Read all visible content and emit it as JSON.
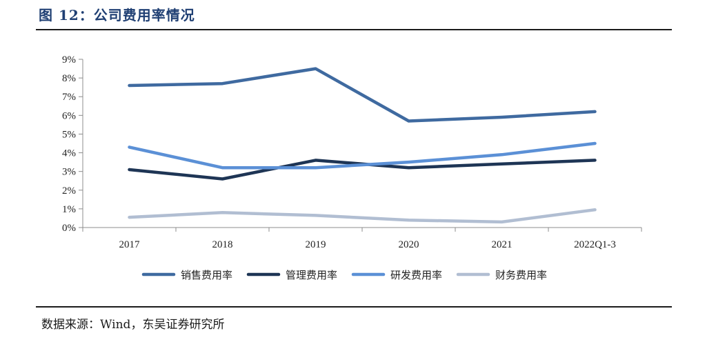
{
  "header": {
    "figure_title": "图 12：公司费用率情况"
  },
  "footer": {
    "source": "数据来源：Wind，东吴证券研究所"
  },
  "chart_data": {
    "type": "line",
    "categories": [
      "2017",
      "2018",
      "2019",
      "2020",
      "2021",
      "2022Q1-3"
    ],
    "ylim": [
      0,
      9
    ],
    "yticks": [
      0,
      1,
      2,
      3,
      4,
      5,
      6,
      7,
      8,
      9
    ],
    "ytick_labels": [
      "0%",
      "1%",
      "2%",
      "3%",
      "4%",
      "5%",
      "6%",
      "7%",
      "8%",
      "9%"
    ],
    "grid": false,
    "legend_position": "bottom",
    "series": [
      {
        "name": "销售费用率",
        "color": "#3f6aa0",
        "values": [
          7.6,
          7.7,
          8.5,
          5.7,
          5.9,
          6.2
        ]
      },
      {
        "name": "管理费用率",
        "color": "#1e3555",
        "values": [
          3.1,
          2.6,
          3.6,
          3.2,
          3.4,
          3.6
        ]
      },
      {
        "name": "研发费用率",
        "color": "#5b90d6",
        "values": [
          4.3,
          3.2,
          3.2,
          3.5,
          3.9,
          4.5
        ]
      },
      {
        "name": "财务费用率",
        "color": "#b1bed2",
        "values": [
          0.55,
          0.8,
          0.65,
          0.4,
          0.3,
          0.95
        ]
      }
    ]
  }
}
